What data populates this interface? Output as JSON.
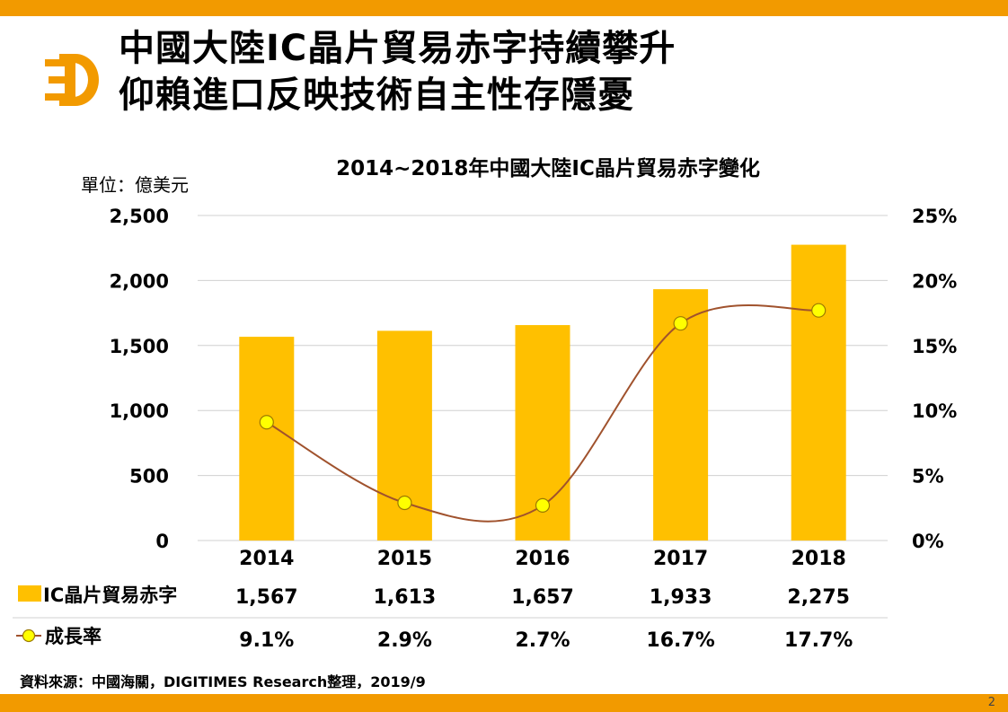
{
  "header": {
    "title_line1": "中國大陸IC晶片貿易赤字持續攀升",
    "title_line2": "仰賴進口反映技術自主性存隱憂",
    "logo_icon": "digitimes-d-logo-icon"
  },
  "colors": {
    "accent": "#f29a00",
    "bar": "#ffc000",
    "line": "#a0522d",
    "marker_fill": "#ffff00",
    "marker_stroke": "#9c7a00",
    "grid": "#d0d0d0"
  },
  "chart_data": {
    "type": "bar",
    "title": "2014~2018年中國大陸IC晶片貿易赤字變化",
    "unit_label": "單位：億美元",
    "categories": [
      "2014",
      "2015",
      "2016",
      "2017",
      "2018"
    ],
    "series": [
      {
        "name": "IC晶片貿易赤字",
        "type": "bar",
        "axis": "left",
        "values": [
          1567,
          1613,
          1657,
          1933,
          2275
        ],
        "labels": [
          "1,567",
          "1,613",
          "1,657",
          "1,933",
          "2,275"
        ]
      },
      {
        "name": "成長率",
        "type": "line",
        "axis": "right",
        "values": [
          9.1,
          2.9,
          2.7,
          16.7,
          17.7
        ],
        "labels": [
          "9.1%",
          "2.9%",
          "2.7%",
          "16.7%",
          "17.7%"
        ]
      }
    ],
    "left_axis": {
      "ylim": [
        0,
        2500
      ],
      "ticks": [
        0,
        500,
        1000,
        1500,
        2000,
        2500
      ],
      "tick_labels": [
        "0",
        "500",
        "1,000",
        "1,500",
        "2,000",
        "2,500"
      ]
    },
    "right_axis": {
      "ylim": [
        0,
        25
      ],
      "ticks": [
        0,
        5,
        10,
        15,
        20,
        25
      ],
      "tick_labels": [
        "0%",
        "5%",
        "10%",
        "15%",
        "20%",
        "25%"
      ]
    },
    "grid": true,
    "legend_placement": "data-table-below"
  },
  "footer": {
    "source": "資料來源：中國海關，DIGITIMES Research整理，2019/9",
    "page_number": "2"
  }
}
